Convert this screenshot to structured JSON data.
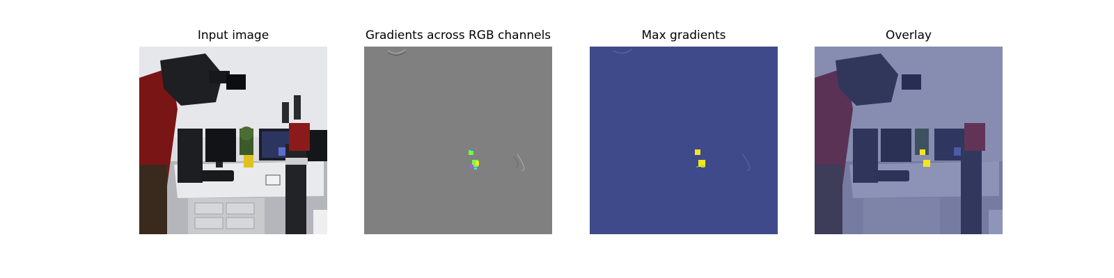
{
  "figure": {
    "panels": [
      {
        "title": "Input image",
        "image": "robot-lab-photo"
      },
      {
        "title": "Gradients across RGB channels",
        "image": "rgb-gradient-map"
      },
      {
        "title": "Max gradients",
        "image": "max-gradient-heatmap"
      },
      {
        "title": "Overlay",
        "image": "gradient-overlay-photo"
      }
    ]
  },
  "colors": {
    "gradient_gray": "#808080",
    "heatmap_background": "#3f4a8a",
    "heatmap_peak": "#f4e61e",
    "gradient_green": "#7cff3c",
    "overlay_tint": "#3f4a8a",
    "robot_red": "#8b1a1a"
  }
}
